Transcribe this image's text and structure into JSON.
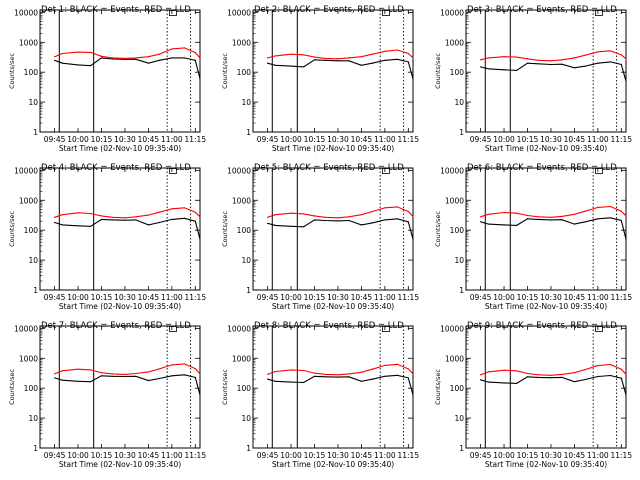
{
  "figure": {
    "x_ticks": [
      "09:45",
      "10:00",
      "10:15",
      "10:30",
      "10:45",
      "11:00",
      "11:15"
    ],
    "y_ticks": [
      "1",
      "10",
      "100",
      "1000",
      "10000"
    ],
    "colors": {
      "events": "#000000",
      "lld": "#ff0000",
      "axes": "#000000",
      "background": "#ffffff"
    }
  },
  "chart_data": [
    {
      "type": "line",
      "title": "Det 1: BLACK = Events, RED = LLD",
      "xlabel": "Start Time (02-Nov-10 09:35:40)",
      "ylabel": "Counts/sec",
      "y_scale": "log",
      "ylim": [
        1,
        12000
      ],
      "xlim": [
        "09:35:40",
        "11:18:00"
      ],
      "x": [
        "09:35:40",
        "09:41",
        "09:45",
        "09:50",
        "10:00",
        "10:08",
        "10:15",
        "10:22",
        "10:30",
        "10:37",
        "10:45",
        "10:52",
        "11:00",
        "11:08",
        "11:15",
        "11:18"
      ],
      "series": [
        {
          "name": "Events",
          "color": "#000000",
          "values": [
            null,
            null,
            250,
            200,
            175,
            165,
            300,
            275,
            270,
            270,
            200,
            250,
            300,
            300,
            250,
            60
          ]
        },
        {
          "name": "LLD",
          "color": "#ff0000",
          "values": [
            null,
            null,
            330,
            420,
            470,
            460,
            340,
            300,
            290,
            300,
            330,
            400,
            600,
            650,
            450,
            300
          ]
        }
      ],
      "vertical_lines": [
        {
          "x": "09:48",
          "style": "solid"
        },
        {
          "x": "10:10",
          "style": "solid"
        },
        {
          "x": "10:57",
          "style": "dotted"
        },
        {
          "x": "11:12",
          "style": "dotted"
        }
      ]
    },
    {
      "type": "line",
      "title": "Det 2: BLACK = Events, RED = LLD",
      "xlabel": "Start Time (02-Nov-10 09:35:40)",
      "ylabel": "Counts/sec",
      "y_scale": "log",
      "ylim": [
        1,
        12000
      ],
      "xlim": [
        "09:35:40",
        "11:18:00"
      ],
      "x": [
        "09:35:40",
        "09:41",
        "09:45",
        "09:50",
        "10:00",
        "10:08",
        "10:15",
        "10:22",
        "10:30",
        "10:37",
        "10:45",
        "10:52",
        "11:00",
        "11:08",
        "11:15",
        "11:18"
      ],
      "series": [
        {
          "name": "Events",
          "color": "#000000",
          "values": [
            null,
            null,
            200,
            170,
            160,
            150,
            260,
            250,
            240,
            240,
            170,
            200,
            250,
            270,
            220,
            60
          ]
        },
        {
          "name": "LLD",
          "color": "#ff0000",
          "values": [
            null,
            null,
            300,
            350,
            400,
            380,
            320,
            290,
            280,
            300,
            330,
            400,
            500,
            550,
            420,
            300
          ]
        }
      ],
      "vertical_lines": [
        {
          "x": "09:48",
          "style": "solid"
        },
        {
          "x": "10:04",
          "style": "solid"
        },
        {
          "x": "10:57",
          "style": "dotted"
        },
        {
          "x": "11:12",
          "style": "dotted"
        }
      ]
    },
    {
      "type": "line",
      "title": "Det 3: BLACK = Events, RED = LLD",
      "xlabel": "Start Time (02-Nov-10 09:35:40)",
      "ylabel": "Counts/sec",
      "y_scale": "log",
      "ylim": [
        1,
        12000
      ],
      "xlim": [
        "09:35:40",
        "11:18:00"
      ],
      "x": [
        "09:35:40",
        "09:41",
        "09:45",
        "09:50",
        "10:00",
        "10:08",
        "10:15",
        "10:22",
        "10:30",
        "10:37",
        "10:45",
        "10:52",
        "11:00",
        "11:08",
        "11:15",
        "11:18"
      ],
      "series": [
        {
          "name": "Events",
          "color": "#000000",
          "values": [
            null,
            null,
            150,
            130,
            120,
            115,
            200,
            190,
            180,
            185,
            140,
            160,
            200,
            220,
            180,
            50
          ]
        },
        {
          "name": "LLD",
          "color": "#ff0000",
          "values": [
            null,
            null,
            260,
            300,
            330,
            320,
            280,
            250,
            240,
            260,
            300,
            370,
            480,
            520,
            380,
            280
          ]
        }
      ],
      "vertical_lines": [
        {
          "x": "09:48",
          "style": "solid"
        },
        {
          "x": "10:04",
          "style": "solid"
        },
        {
          "x": "10:57",
          "style": "dotted"
        },
        {
          "x": "11:12",
          "style": "dotted"
        }
      ]
    },
    {
      "type": "line",
      "title": "Det 4: BLACK = Events, RED = LLD",
      "xlabel": "Start Time (02-Nov-10 09:35:40)",
      "ylabel": "Counts/sec",
      "y_scale": "log",
      "ylim": [
        1,
        12000
      ],
      "xlim": [
        "09:35:40",
        "11:18:00"
      ],
      "x": [
        "09:35:40",
        "09:41",
        "09:45",
        "09:50",
        "10:00",
        "10:08",
        "10:15",
        "10:22",
        "10:30",
        "10:37",
        "10:45",
        "10:52",
        "11:00",
        "11:08",
        "11:15",
        "11:18"
      ],
      "series": [
        {
          "name": "Events",
          "color": "#000000",
          "values": [
            null,
            null,
            180,
            150,
            140,
            135,
            230,
            220,
            215,
            220,
            150,
            180,
            230,
            250,
            200,
            50
          ]
        },
        {
          "name": "LLD",
          "color": "#ff0000",
          "values": [
            null,
            null,
            270,
            330,
            380,
            360,
            300,
            270,
            260,
            280,
            320,
            400,
            520,
            560,
            400,
            280
          ]
        }
      ],
      "vertical_lines": [
        {
          "x": "09:48",
          "style": "solid"
        },
        {
          "x": "10:10",
          "style": "solid"
        },
        {
          "x": "10:57",
          "style": "dotted"
        },
        {
          "x": "11:12",
          "style": "dotted"
        }
      ]
    },
    {
      "type": "line",
      "title": "Det 5: BLACK = Events, RED = LLD",
      "xlabel": "Start Time (02-Nov-10 09:35:40)",
      "ylabel": "Counts/sec",
      "y_scale": "log",
      "ylim": [
        1,
        12000
      ],
      "xlim": [
        "09:35:40",
        "11:18:00"
      ],
      "x": [
        "09:35:40",
        "09:41",
        "09:45",
        "09:50",
        "10:00",
        "10:08",
        "10:15",
        "10:22",
        "10:30",
        "10:37",
        "10:45",
        "10:52",
        "11:00",
        "11:08",
        "11:15",
        "11:18"
      ],
      "series": [
        {
          "name": "Events",
          "color": "#000000",
          "values": [
            null,
            null,
            170,
            145,
            135,
            130,
            220,
            210,
            205,
            210,
            150,
            175,
            220,
            240,
            190,
            50
          ]
        },
        {
          "name": "LLD",
          "color": "#ff0000",
          "values": [
            null,
            null,
            270,
            330,
            370,
            350,
            300,
            270,
            260,
            280,
            330,
            420,
            560,
            600,
            420,
            290
          ]
        }
      ],
      "vertical_lines": [
        {
          "x": "09:48",
          "style": "solid"
        },
        {
          "x": "10:04",
          "style": "solid"
        },
        {
          "x": "10:57",
          "style": "dotted"
        },
        {
          "x": "11:12",
          "style": "dotted"
        }
      ]
    },
    {
      "type": "line",
      "title": "Det 6: BLACK = Events, RED = LLD",
      "xlabel": "Start Time (02-Nov-10 09:35:40)",
      "ylabel": "Counts/sec",
      "y_scale": "log",
      "ylim": [
        1,
        12000
      ],
      "xlim": [
        "09:35:40",
        "11:18:00"
      ],
      "x": [
        "09:35:40",
        "09:41",
        "09:45",
        "09:50",
        "10:00",
        "10:08",
        "10:15",
        "10:22",
        "10:30",
        "10:37",
        "10:45",
        "10:52",
        "11:00",
        "11:08",
        "11:15",
        "11:18"
      ],
      "series": [
        {
          "name": "Events",
          "color": "#000000",
          "values": [
            null,
            null,
            190,
            160,
            150,
            145,
            240,
            230,
            220,
            225,
            160,
            190,
            240,
            260,
            210,
            50
          ]
        },
        {
          "name": "LLD",
          "color": "#ff0000",
          "values": [
            null,
            null,
            280,
            340,
            390,
            370,
            310,
            280,
            270,
            290,
            340,
            430,
            580,
            620,
            430,
            300
          ]
        }
      ],
      "vertical_lines": [
        {
          "x": "09:48",
          "style": "solid"
        },
        {
          "x": "10:04",
          "style": "solid"
        },
        {
          "x": "10:57",
          "style": "dotted"
        },
        {
          "x": "11:12",
          "style": "dotted"
        }
      ]
    },
    {
      "type": "line",
      "title": "Det 7: BLACK = Events, RED = LLD",
      "xlabel": "Start Time (02-Nov-10 09:35:40)",
      "ylabel": "Counts/sec",
      "y_scale": "log",
      "ylim": [
        1,
        12000
      ],
      "xlim": [
        "09:35:40",
        "11:18:00"
      ],
      "x": [
        "09:35:40",
        "09:41",
        "09:45",
        "09:50",
        "10:00",
        "10:08",
        "10:15",
        "10:22",
        "10:30",
        "10:37",
        "10:45",
        "10:52",
        "11:00",
        "11:08",
        "11:15",
        "11:18"
      ],
      "series": [
        {
          "name": "Events",
          "color": "#000000",
          "values": [
            null,
            null,
            220,
            185,
            170,
            165,
            260,
            250,
            245,
            250,
            180,
            210,
            260,
            280,
            230,
            60
          ]
        },
        {
          "name": "LLD",
          "color": "#ff0000",
          "values": [
            null,
            null,
            300,
            380,
            430,
            410,
            330,
            300,
            290,
            310,
            350,
            440,
            600,
            650,
            450,
            300
          ]
        }
      ],
      "vertical_lines": [
        {
          "x": "09:48",
          "style": "solid"
        },
        {
          "x": "10:10",
          "style": "solid"
        },
        {
          "x": "10:57",
          "style": "dotted"
        },
        {
          "x": "11:12",
          "style": "dotted"
        }
      ]
    },
    {
      "type": "line",
      "title": "Det 8: BLACK = Events, RED = LLD",
      "xlabel": "Start Time (02-Nov-10 09:35:40)",
      "ylabel": "Counts/sec",
      "y_scale": "log",
      "ylim": [
        1,
        12000
      ],
      "xlim": [
        "09:35:40",
        "11:18:00"
      ],
      "x": [
        "09:35:40",
        "09:41",
        "09:45",
        "09:50",
        "10:00",
        "10:08",
        "10:15",
        "10:22",
        "10:30",
        "10:37",
        "10:45",
        "10:52",
        "11:00",
        "11:08",
        "11:15",
        "11:18"
      ],
      "series": [
        {
          "name": "Events",
          "color": "#000000",
          "values": [
            null,
            null,
            200,
            170,
            160,
            155,
            250,
            240,
            235,
            240,
            170,
            200,
            250,
            270,
            220,
            60
          ]
        },
        {
          "name": "LLD",
          "color": "#ff0000",
          "values": [
            null,
            null,
            290,
            360,
            410,
            390,
            320,
            290,
            280,
            300,
            340,
            430,
            580,
            630,
            440,
            300
          ]
        }
      ],
      "vertical_lines": [
        {
          "x": "09:48",
          "style": "solid"
        },
        {
          "x": "10:04",
          "style": "solid"
        },
        {
          "x": "10:57",
          "style": "dotted"
        },
        {
          "x": "11:12",
          "style": "dotted"
        }
      ]
    },
    {
      "type": "line",
      "title": "Det 9: BLACK = Events, RED = LLD",
      "xlabel": "Start Time (02-Nov-10 09:35:40)",
      "ylabel": "Counts/sec",
      "y_scale": "log",
      "ylim": [
        1,
        12000
      ],
      "xlim": [
        "09:35:40",
        "11:18:00"
      ],
      "x": [
        "09:35:40",
        "09:41",
        "09:45",
        "09:50",
        "10:00",
        "10:08",
        "10:15",
        "10:22",
        "10:30",
        "10:37",
        "10:45",
        "10:52",
        "11:00",
        "11:08",
        "11:15",
        "11:18"
      ],
      "series": [
        {
          "name": "Events",
          "color": "#000000",
          "values": [
            null,
            null,
            190,
            160,
            150,
            145,
            240,
            230,
            225,
            230,
            165,
            195,
            245,
            265,
            215,
            60
          ]
        },
        {
          "name": "LLD",
          "color": "#ff0000",
          "values": [
            null,
            null,
            280,
            350,
            400,
            380,
            310,
            280,
            270,
            290,
            330,
            420,
            570,
            620,
            430,
            290
          ]
        }
      ],
      "vertical_lines": [
        {
          "x": "09:48",
          "style": "solid"
        },
        {
          "x": "10:04",
          "style": "solid"
        },
        {
          "x": "10:57",
          "style": "dotted"
        },
        {
          "x": "11:12",
          "style": "dotted"
        }
      ]
    }
  ]
}
